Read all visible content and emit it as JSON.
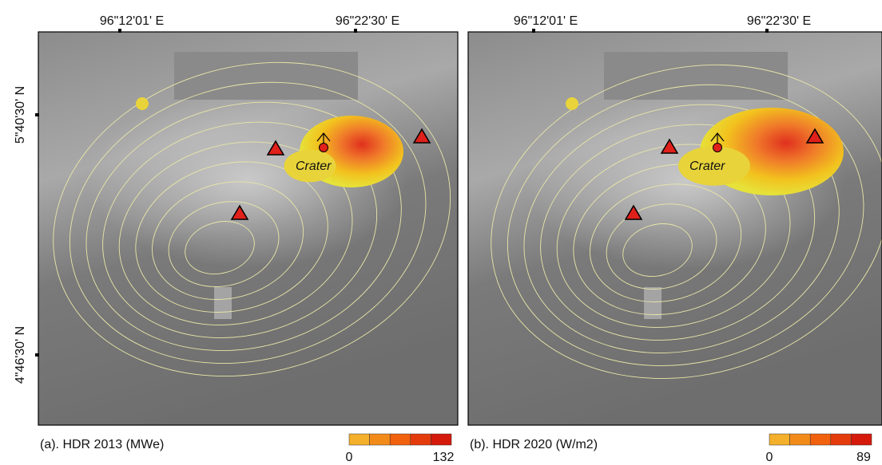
{
  "panels": [
    {
      "top_ticks": [
        "96\"12'01' E",
        "96\"22'30' E"
      ],
      "left_ticks": [
        "5\"40'30' N",
        "4\"46'30' N"
      ],
      "crater_label": "Crater",
      "caption": "(a). HDR 2013 (MWe)",
      "colorbar": {
        "min": 0,
        "max": 132
      }
    },
    {
      "top_ticks": [
        "96\"12'01' E",
        "96\"22'30' E"
      ],
      "crater_label": "Crater",
      "caption": "(b). HDR 2020 (W/m2)",
      "colorbar": {
        "min": 0,
        "max": 89
      }
    }
  ]
}
